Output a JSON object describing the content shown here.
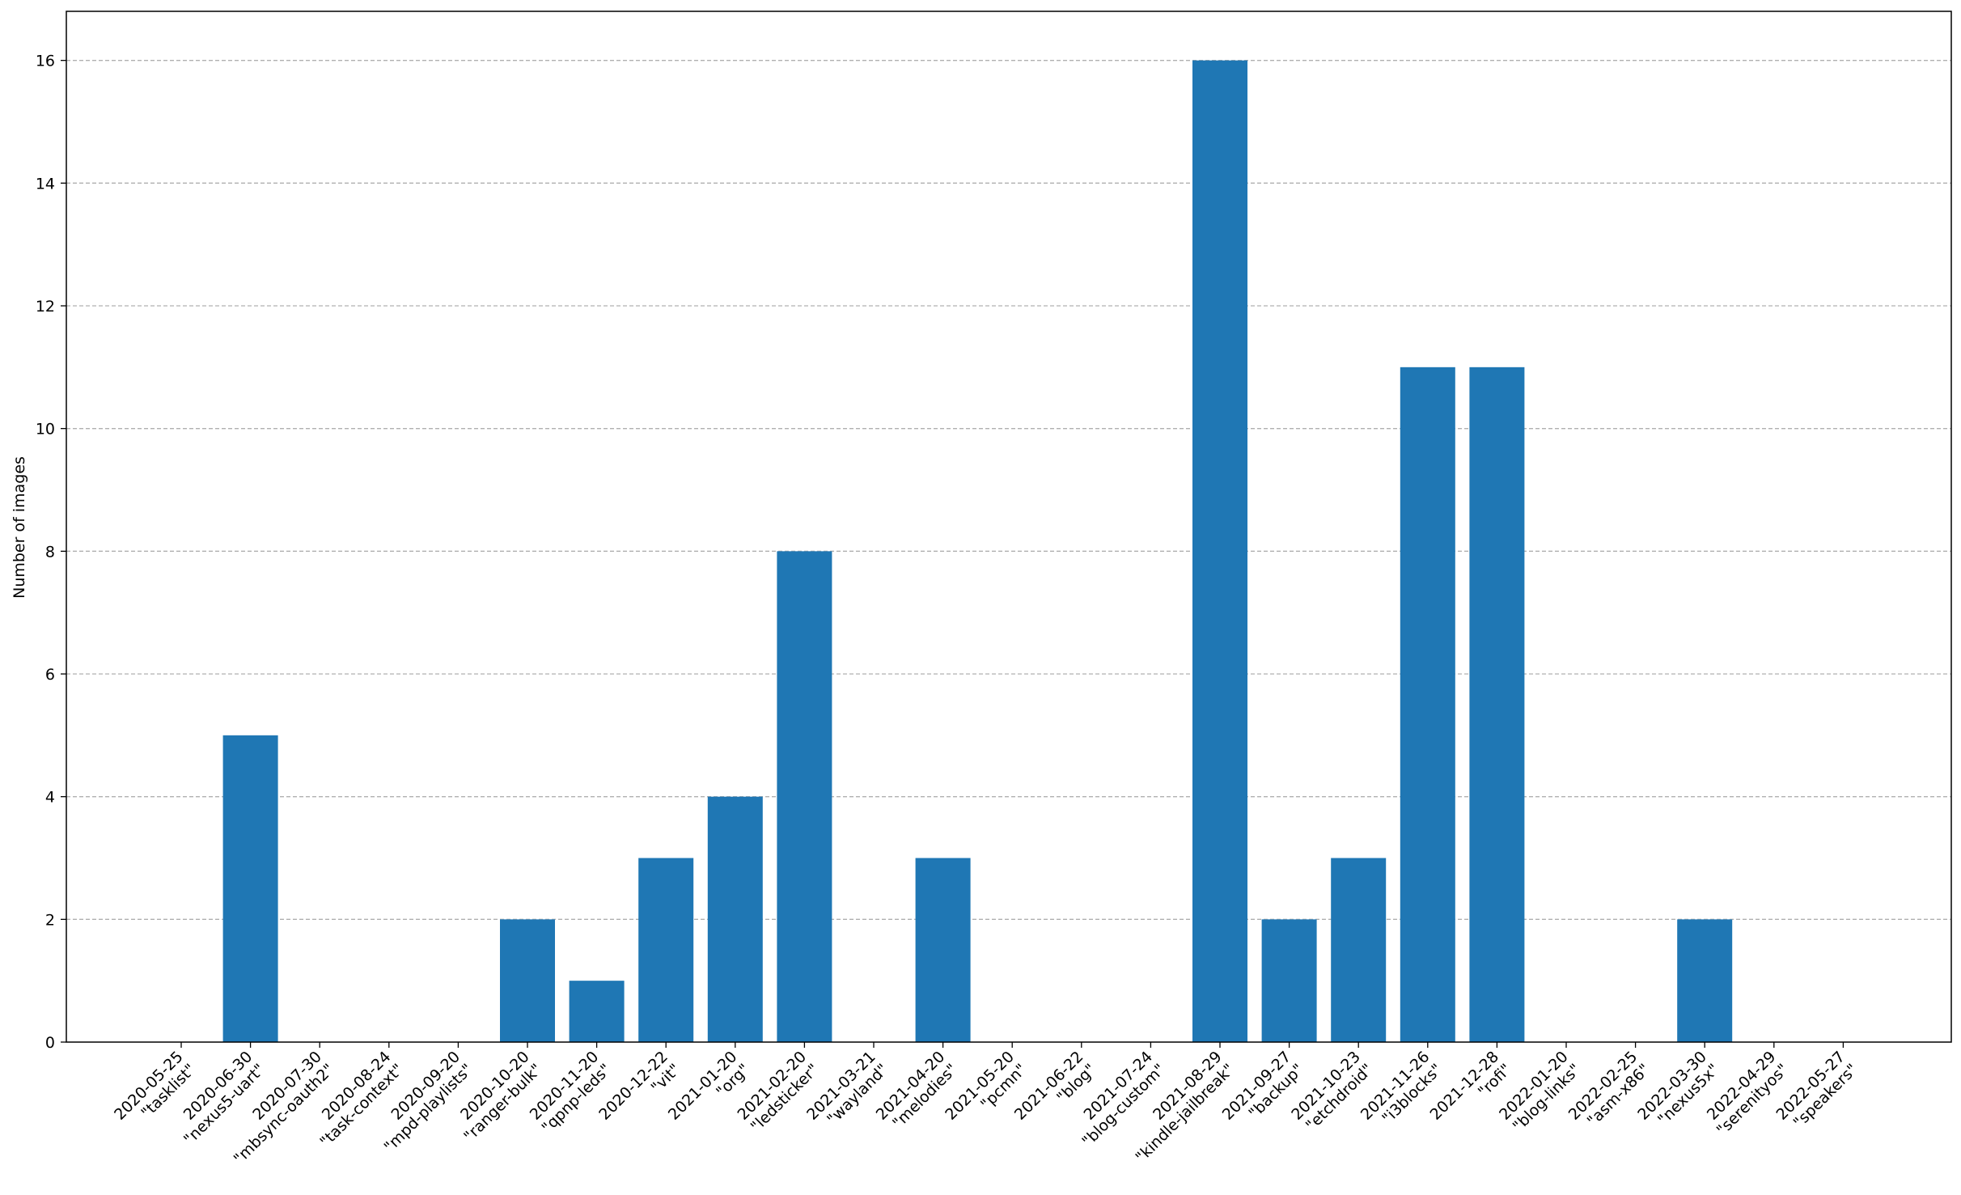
{
  "chart_data": {
    "type": "bar",
    "title": "",
    "xlabel": "",
    "ylabel": "Number of images",
    "ylim": [
      0,
      16.8
    ],
    "yticks": [
      0,
      2,
      4,
      6,
      8,
      10,
      12,
      14,
      16
    ],
    "grid": {
      "y": true,
      "x": false,
      "style": "dashed"
    },
    "bar_color": "#1f77b4",
    "categories": [
      {
        "date": "2020-05-25",
        "name": "\"tasklist\""
      },
      {
        "date": "2020-06-30",
        "name": "\"nexus5-uart\""
      },
      {
        "date": "2020-07-30",
        "name": "\"mbsync-oauth2\""
      },
      {
        "date": "2020-08-24",
        "name": "\"task-context\""
      },
      {
        "date": "2020-09-20",
        "name": "\"mpd-playlists\""
      },
      {
        "date": "2020-10-20",
        "name": "\"ranger-bulk\""
      },
      {
        "date": "2020-11-20",
        "name": "\"qpnp-leds\""
      },
      {
        "date": "2020-12-22",
        "name": "\"vit\""
      },
      {
        "date": "2021-01-20",
        "name": "\"org\""
      },
      {
        "date": "2021-02-20",
        "name": "\"ledsticker\""
      },
      {
        "date": "2021-03-21",
        "name": "\"wayland\""
      },
      {
        "date": "2021-04-20",
        "name": "\"melodies\""
      },
      {
        "date": "2021-05-20",
        "name": "\"pcmn\""
      },
      {
        "date": "2021-06-22",
        "name": "\"blog\""
      },
      {
        "date": "2021-07-24",
        "name": "\"blog-custom\""
      },
      {
        "date": "2021-08-29",
        "name": "\"kindle-jailbreak\""
      },
      {
        "date": "2021-09-27",
        "name": "\"backup\""
      },
      {
        "date": "2021-10-23",
        "name": "\"etchdroid\""
      },
      {
        "date": "2021-11-26",
        "name": "\"i3blocks\""
      },
      {
        "date": "2021-12-28",
        "name": "\"rofi\""
      },
      {
        "date": "2022-01-20",
        "name": "\"blog-links\""
      },
      {
        "date": "2022-02-25",
        "name": "\"asm-x86\""
      },
      {
        "date": "2022-03-30",
        "name": "\"nexus5x\""
      },
      {
        "date": "2022-04-29",
        "name": "\"serenityos\""
      },
      {
        "date": "2022-05-27",
        "name": "\"speakers\""
      }
    ],
    "values": [
      0,
      5,
      0,
      0,
      0,
      2,
      1,
      3,
      4,
      8,
      0,
      3,
      0,
      0,
      0,
      16,
      2,
      3,
      11,
      11,
      0,
      0,
      2,
      0,
      0
    ]
  }
}
